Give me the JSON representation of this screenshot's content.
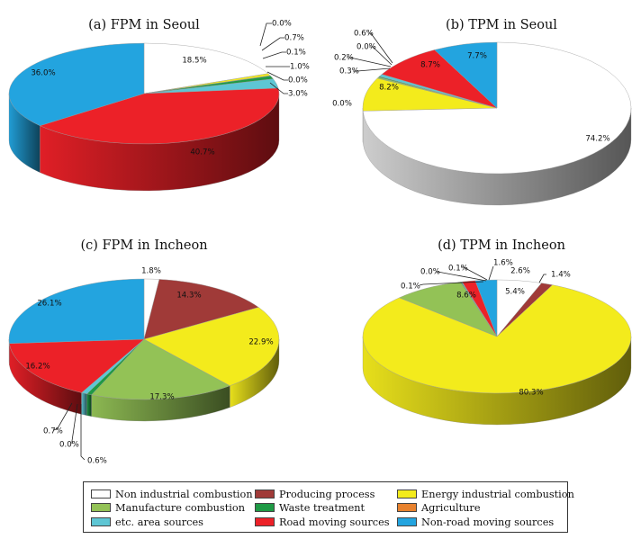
{
  "legend": [
    {
      "name": "Non industrial combustion",
      "color": "#ffffff"
    },
    {
      "name": "Producing process",
      "color": "#a03a38"
    },
    {
      "name": "Energy industrial combustion",
      "color": "#f3eb1c"
    },
    {
      "name": "Manufacture combustion",
      "color": "#93c256"
    },
    {
      "name": "Waste treatment",
      "color": "#1f9a45"
    },
    {
      "name": "Agriculture",
      "color": "#e8822e"
    },
    {
      "name": "etc. area sources",
      "color": "#5ec6d4"
    },
    {
      "name": "Road moving sources",
      "color": "#ec2128"
    },
    {
      "name": "Non-road moving sources",
      "color": "#23a4df"
    }
  ],
  "chart_data": [
    {
      "type": "pie",
      "title": "(a) FPM in Seoul",
      "categories": [
        "Non industrial combustion",
        "Producing process",
        "Energy industrial combustion",
        "Manufacture combustion",
        "Waste treatment",
        "Agriculture",
        "etc. area sources",
        "Road moving sources",
        "Non-road moving sources"
      ],
      "values": [
        18.5,
        0.0,
        0.7,
        0.1,
        1.0,
        0.0,
        3.0,
        40.7,
        36.0
      ],
      "value_labels": [
        "18.5%",
        "0.0%",
        "0.7%",
        "0.1%",
        "1.0%",
        "0.0%",
        "3.0%",
        "40.7%",
        "36.0%"
      ]
    },
    {
      "type": "pie",
      "title": "(b) TPM in Seoul",
      "categories": [
        "Non industrial combustion",
        "Producing process",
        "Energy industrial combustion",
        "Manufacture combustion",
        "Waste treatment",
        "Agriculture",
        "etc. area sources",
        "Road moving sources",
        "Non-road moving sources"
      ],
      "values": [
        74.2,
        0.0,
        8.2,
        0.3,
        0.2,
        0.0,
        0.6,
        8.7,
        7.7
      ],
      "value_labels": [
        "74.2%",
        "0.0%",
        "8.2%",
        "0.3%",
        "0.2%",
        "0.0%",
        "0.6%",
        "8.7%",
        "7.7%"
      ]
    },
    {
      "type": "pie",
      "title": "(c) FPM in Incheon",
      "categories": [
        "Non industrial combustion",
        "Producing process",
        "Energy industrial combustion",
        "Manufacture combustion",
        "Waste treatment",
        "Agriculture",
        "etc. area sources",
        "Road moving sources",
        "Non-road moving sources"
      ],
      "values": [
        1.8,
        14.3,
        22.9,
        17.3,
        0.6,
        0.0,
        0.7,
        16.2,
        26.1
      ],
      "value_labels": [
        "1.8%",
        "14.3%",
        "22.9%",
        "17.3%",
        "0.6%",
        "0.0%",
        "0.7%",
        "16.2%",
        "26.1%"
      ]
    },
    {
      "type": "pie",
      "title": "(d) TPM in Incheon",
      "categories": [
        "Non industrial combustion",
        "Producing process",
        "Energy industrial combustion",
        "Manufacture combustion",
        "Waste treatment",
        "Agriculture",
        "etc. area sources",
        "Road moving sources",
        "Non-road moving sources"
      ],
      "values": [
        5.4,
        1.4,
        80.3,
        8.6,
        0.1,
        0.0,
        0.1,
        1.6,
        2.6
      ],
      "value_labels": [
        "5.4%",
        "1.4%",
        "80.3%",
        "8.6%",
        "0.1%",
        "0.0%",
        "0.1%",
        "1.6%",
        "2.6%"
      ]
    }
  ]
}
